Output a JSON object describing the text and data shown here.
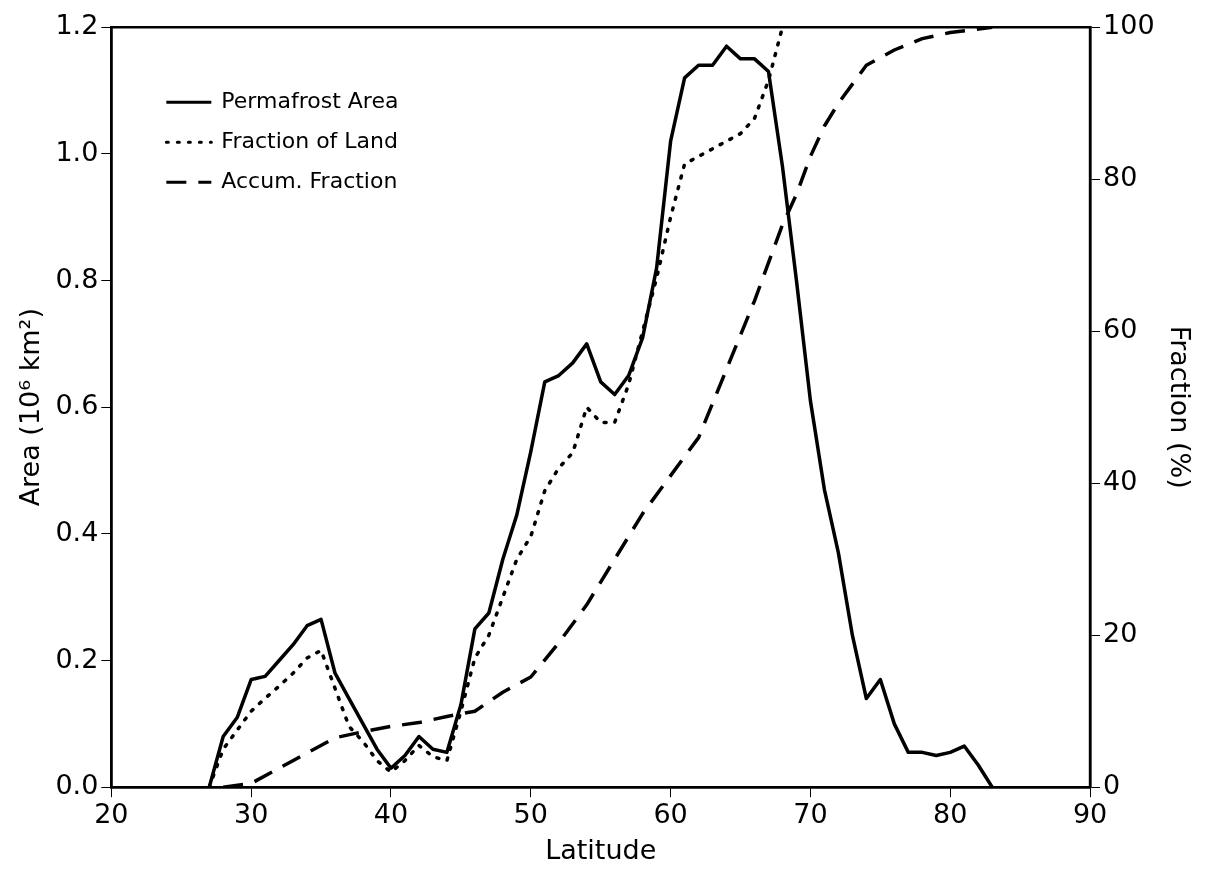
{
  "chart_data": {
    "type": "line",
    "xlabel": "Latitude",
    "ylabel": "Area (10⁶ km²)",
    "y2label": "Fraction (%)",
    "xlim": [
      20,
      90
    ],
    "xticks": [
      20,
      30,
      40,
      50,
      60,
      70,
      80,
      90
    ],
    "ylim": [
      0,
      1.2
    ],
    "yticks": [
      {
        "value": 0,
        "label": "0.0"
      },
      0.2,
      0.4,
      0.6,
      0.8,
      {
        "value": 1,
        "label": "1.0"
      },
      1.2
    ],
    "y2lim": [
      0,
      100
    ],
    "y2ticks": [
      0,
      20,
      40,
      60,
      80,
      100
    ],
    "legend": "top left",
    "marker": "none",
    "series": [
      {
        "name": "Permafrost Area",
        "color": "#000000",
        "line_style": "solid",
        "x": [
          27,
          28,
          29,
          30,
          31,
          32,
          33,
          34,
          35,
          36,
          37,
          38,
          39,
          40,
          41,
          42,
          43,
          44,
          45,
          46,
          47,
          48,
          49,
          50,
          51,
          52,
          53,
          54,
          55,
          56,
          57,
          58,
          59,
          60,
          61,
          62,
          63,
          64,
          65,
          66,
          67,
          68,
          69,
          70,
          71,
          72,
          73,
          74,
          75,
          76,
          77,
          78,
          79,
          80,
          81,
          82,
          83
        ],
        "values": [
          0,
          0.08,
          0.11,
          0.17,
          0.175,
          0.2,
          0.225,
          0.255,
          0.265,
          0.18,
          0.14,
          0.1,
          0.06,
          0.03,
          0.05,
          0.08,
          0.06,
          0.055,
          0.13,
          0.25,
          0.275,
          0.36,
          0.43,
          0.53,
          0.64,
          0.65,
          0.67,
          0.7,
          0.64,
          0.62,
          0.65,
          0.71,
          0.82,
          1.02,
          1.12,
          1.14,
          1.14,
          1.17,
          1.15,
          1.15,
          1.13,
          0.98,
          0.8,
          0.61,
          0.47,
          0.37,
          0.24,
          0.14,
          0.17,
          0.1,
          0.055,
          0.055,
          0.05,
          0.055,
          0.065,
          0.035,
          0
        ]
      },
      {
        "name": "Fraction of Land",
        "color": "#000000",
        "line_style": "dotted",
        "axis": "y2",
        "x": [
          27,
          28,
          29,
          30,
          31,
          32,
          33,
          34,
          35,
          36,
          37,
          38,
          39,
          40,
          41,
          42,
          43,
          44,
          45,
          46,
          47,
          48,
          49,
          50,
          51,
          52,
          53,
          54,
          55,
          56,
          57,
          58,
          59,
          60,
          61,
          62,
          63,
          64,
          65,
          66,
          67,
          68
        ],
        "values": [
          0,
          5,
          7.5,
          10,
          11.7,
          13.3,
          15,
          17,
          18,
          13,
          8,
          6,
          3.5,
          2,
          3.5,
          5.5,
          4,
          3.5,
          10,
          17,
          20,
          25,
          30,
          33,
          39,
          42,
          44,
          50,
          48,
          48,
          53,
          60,
          67,
          75,
          82,
          83,
          84,
          85,
          86,
          88,
          93,
          100
        ]
      },
      {
        "name": "Accum. Fraction",
        "color": "#000000",
        "line_style": "dashed",
        "axis": "y2",
        "x": [
          28,
          30,
          32,
          34,
          36,
          38,
          40,
          42,
          44,
          46,
          48,
          50,
          52,
          54,
          56,
          58,
          60,
          62,
          64,
          66,
          68,
          69,
          70,
          71,
          72,
          74,
          76,
          78,
          80,
          83
        ],
        "values": [
          0,
          0.5,
          2.5,
          4.5,
          6.5,
          7.3,
          8,
          8.5,
          9.3,
          10,
          12.5,
          14.5,
          19,
          24,
          30,
          36,
          41,
          46,
          55,
          64,
          74,
          78,
          83,
          87,
          90,
          95,
          97,
          98.5,
          99.3,
          100
        ]
      }
    ]
  }
}
